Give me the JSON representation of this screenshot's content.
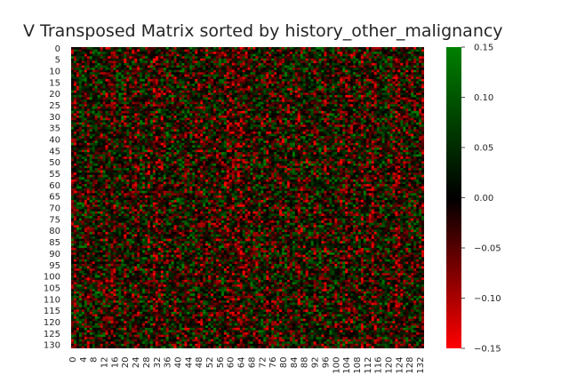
{
  "chart_data": {
    "type": "heatmap",
    "title": "V Transposed Matrix sorted by history_other_malignancy",
    "xlabel": "",
    "ylabel": "",
    "rows": 132,
    "cols": 134,
    "x_tick_labels": [
      "0",
      "4",
      "8",
      "12",
      "16",
      "20",
      "24",
      "28",
      "32",
      "36",
      "40",
      "44",
      "48",
      "52",
      "56",
      "60",
      "64",
      "68",
      "72",
      "76",
      "80",
      "84",
      "88",
      "92",
      "96",
      "100",
      "104",
      "108",
      "112",
      "116",
      "120",
      "124",
      "128",
      "132"
    ],
    "y_tick_labels": [
      "0",
      "5",
      "10",
      "15",
      "20",
      "25",
      "30",
      "35",
      "40",
      "45",
      "50",
      "55",
      "60",
      "65",
      "70",
      "75",
      "80",
      "85",
      "90",
      "95",
      "100",
      "105",
      "110",
      "115",
      "120",
      "125",
      "130"
    ],
    "colorbar": {
      "vmin": -0.15,
      "vmax": 0.15,
      "tick_labels": [
        "0.15",
        "0.10",
        "0.05",
        "0.00",
        "−0.05",
        "−0.10",
        "−0.15"
      ],
      "colors": {
        "low": "#ff0000",
        "mid": "#000000",
        "high": "#008000"
      }
    },
    "grid": false
  }
}
